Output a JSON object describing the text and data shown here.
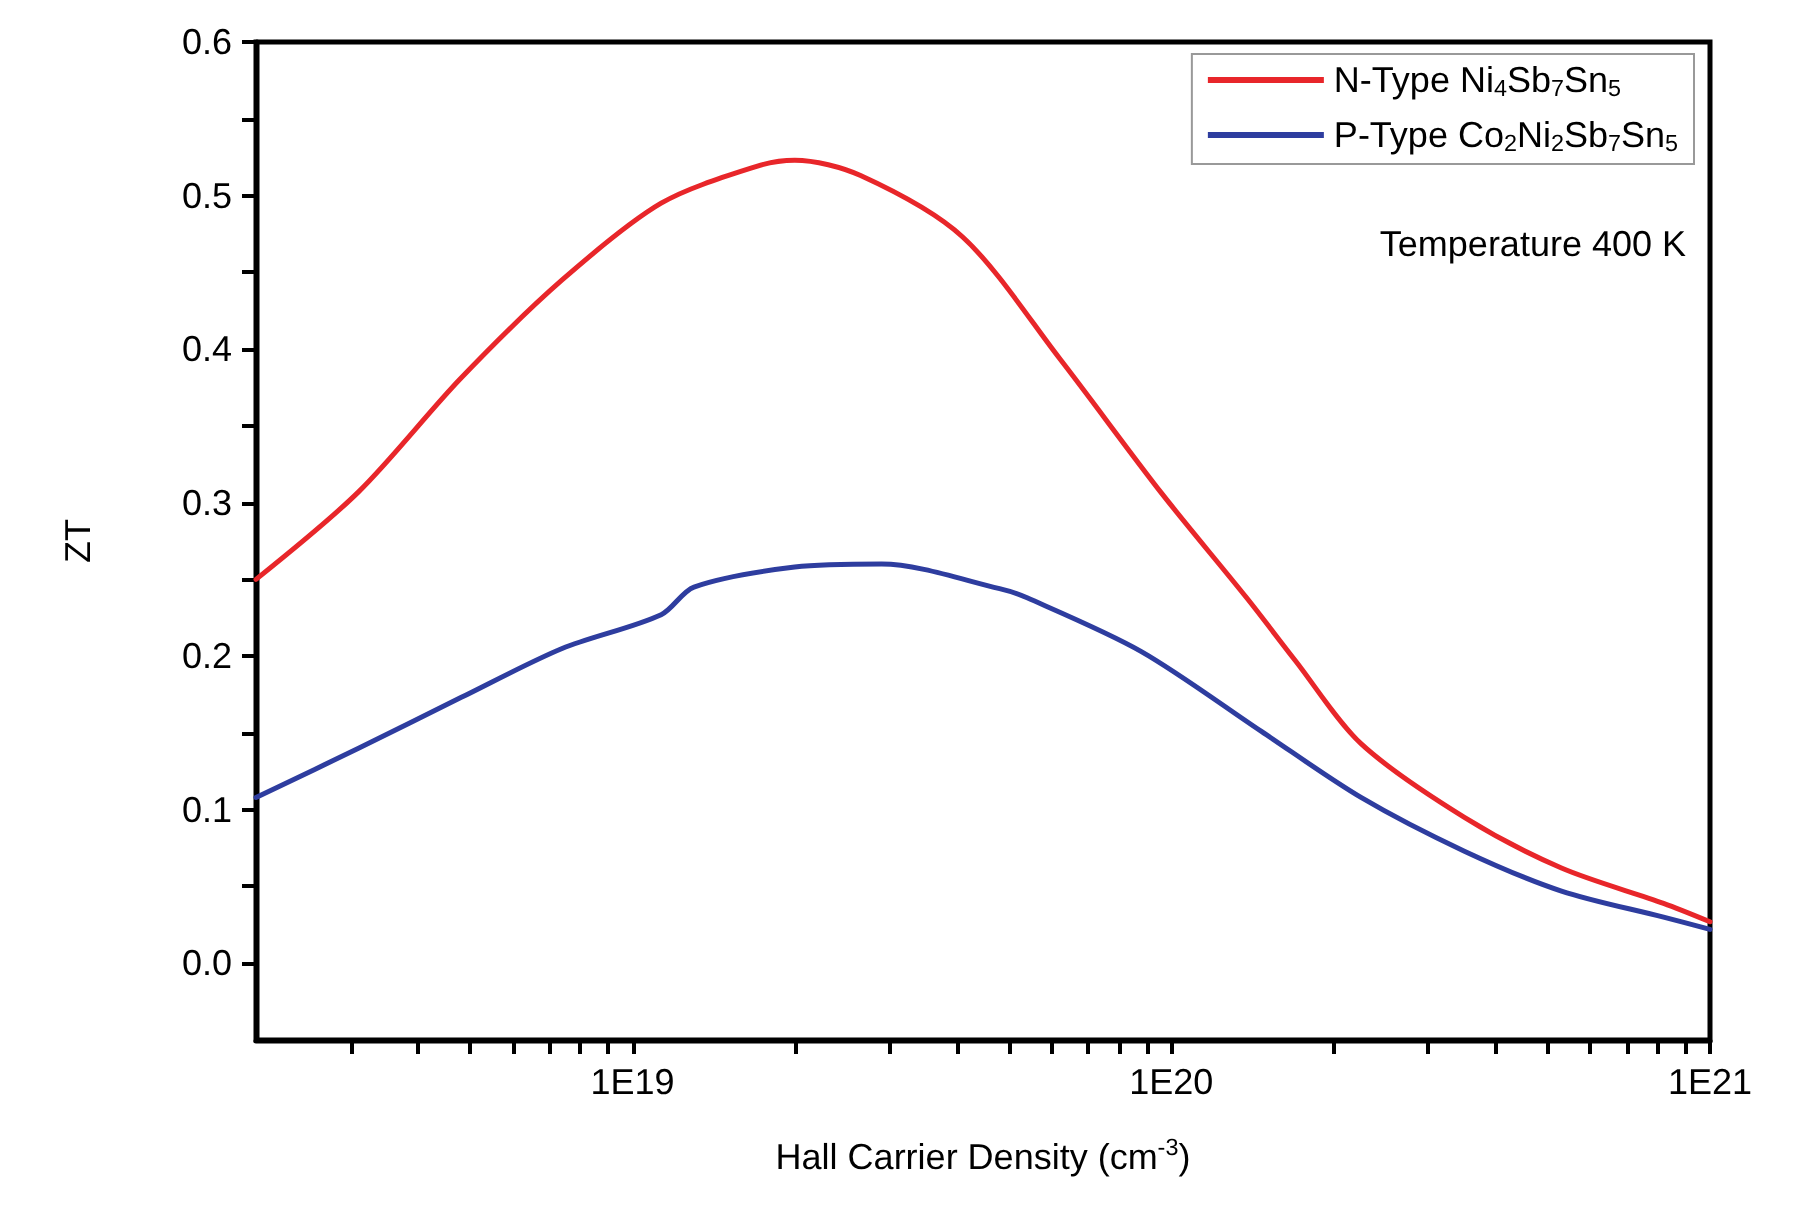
{
  "chart_data": {
    "type": "line",
    "xlabel": "Hall Carrier Density (cm$^{-3}$)",
    "ylabel": "ZT",
    "annotations": [
      "Temperature 400 K"
    ],
    "log": "x",
    "grid": false,
    "legend": "top right",
    "marker": "none",
    "line_style": "solid",
    "xlim": [
      2e+18,
      1e+21
    ],
    "xticks": [
      {
        "value": 3e+18,
        "label": null
      },
      {
        "value": 4e+18,
        "label": null
      },
      {
        "value": 5e+18,
        "label": null
      },
      {
        "value": 6e+18,
        "label": null
      },
      {
        "value": 7e+18,
        "label": null
      },
      {
        "value": 8e+18,
        "label": null
      },
      {
        "value": 9e+18,
        "label": null
      },
      {
        "value": 1e+19,
        "label": "1E19"
      },
      {
        "value": 2e+19,
        "label": null
      },
      {
        "value": 3e+19,
        "label": null
      },
      {
        "value": 4e+19,
        "label": null
      },
      {
        "value": 5e+19,
        "label": null
      },
      {
        "value": 6e+19,
        "label": null
      },
      {
        "value": 7e+19,
        "label": null
      },
      {
        "value": 8e+19,
        "label": null
      },
      {
        "value": 9e+19,
        "label": null
      },
      {
        "value": 1e+20,
        "label": "1E20"
      },
      {
        "value": 2e+20,
        "label": null
      },
      {
        "value": 3e+20,
        "label": null
      },
      {
        "value": 4e+20,
        "label": null
      },
      {
        "value": 5e+20,
        "label": null
      },
      {
        "value": 6e+20,
        "label": null
      },
      {
        "value": 7e+20,
        "label": null
      },
      {
        "value": 8e+20,
        "label": null
      },
      {
        "value": 9e+20,
        "label": null
      },
      {
        "value": 1e+21,
        "label": "1E21"
      }
    ],
    "ylim": [
      -0.05,
      0.6
    ],
    "yticks": [
      {
        "value": 0,
        "label": "0.0"
      },
      {
        "value": 0.05,
        "label": null
      },
      0.1,
      {
        "value": 0.15,
        "label": null
      },
      0.2,
      {
        "value": 0.25,
        "label": null
      },
      0.3,
      {
        "value": 0.35,
        "label": null
      },
      0.4,
      {
        "value": 0.45,
        "label": null
      },
      0.5,
      {
        "value": 0.55,
        "label": null
      },
      0.6
    ],
    "series": [
      {
        "name": "N-Type Ni$_{4}$Sb$_{7}$Sn$_{5}$",
        "color": "#e8262a",
        "x": [
          2e+18,
          3.1e+18,
          4.8e+18,
          7.4e+18,
          1.13e+19,
          1.7e+19,
          2e+19,
          2.65e+19,
          4.1e+19,
          6.2e+19,
          9.6e+19,
          1.38e+20,
          1.7e+20,
          2.25e+20,
          3.5e+20,
          5.3e+20,
          8.2e+20,
          1e+21
        ],
        "values": [
          0.25,
          0.307,
          0.381,
          0.445,
          0.495,
          0.519,
          0.523,
          0.513,
          0.473,
          0.394,
          0.306,
          0.238,
          0.197,
          0.143,
          0.095,
          0.062,
          0.039,
          0.027
        ]
      },
      {
        "name": "P-Type Co$_{2}$Ni$_{2}$Sb$_{7}$Sn$_{5}$",
        "color": "#2e3d9f",
        "x": [
          2e+18,
          3.1e+18,
          4.8e+18,
          7.4e+18,
          1.13e+19,
          1.3e+19,
          2e+19,
          2.9e+19,
          4.8e+19,
          5.4e+19,
          8.8e+19,
          1.47e+20,
          2.25e+20,
          3.5e+20,
          5.3e+20,
          8.2e+20,
          1e+21
        ],
        "values": [
          0.108,
          0.14,
          0.173,
          0.205,
          0.227,
          0.245,
          0.258,
          0.26,
          0.244,
          0.238,
          0.203,
          0.151,
          0.108,
          0.073,
          0.047,
          0.03,
          0.022
        ]
      }
    ]
  }
}
